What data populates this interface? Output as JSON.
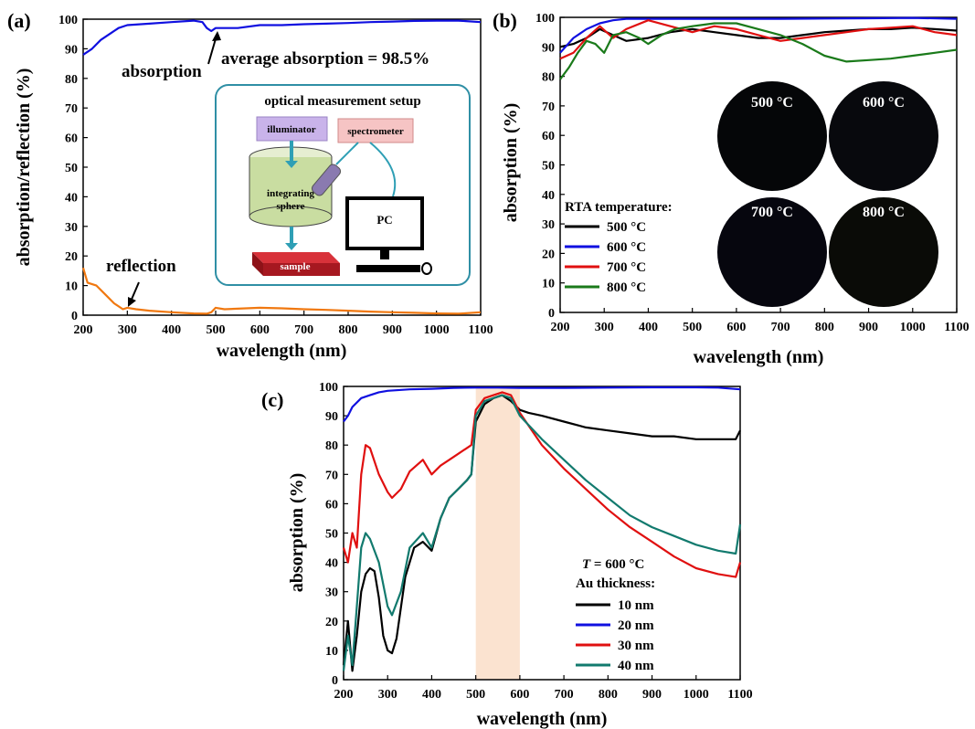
{
  "colors": {
    "black": "#000000",
    "blue": "#1010e0",
    "red": "#e01010",
    "green": "#1a7a1a",
    "orange": "#f07810",
    "teal": "#127a6e",
    "shade": "#fbe3d0"
  },
  "chart_data": [
    {
      "panel": "(a)",
      "type": "line",
      "xlabel": "wavelength (nm)",
      "ylabel": "absorption/reflection (%)",
      "xlim": [
        200,
        1100
      ],
      "ylim": [
        0,
        100
      ],
      "xticks": [
        200,
        300,
        400,
        500,
        600,
        700,
        800,
        900,
        1000,
        1100
      ],
      "yticks": [
        0,
        10,
        20,
        30,
        40,
        50,
        60,
        70,
        80,
        90,
        100
      ],
      "series": [
        {
          "name": "absorption",
          "color": "#1010e0",
          "x": [
            200,
            220,
            240,
            260,
            280,
            300,
            350,
            400,
            450,
            470,
            480,
            490,
            500,
            550,
            600,
            650,
            700,
            750,
            800,
            850,
            900,
            950,
            1000,
            1050,
            1100
          ],
          "y": [
            88,
            90,
            93,
            95,
            97,
            98,
            98.5,
            99,
            99.5,
            99,
            97,
            96,
            97,
            97,
            98,
            98,
            98.3,
            98.5,
            98.7,
            99,
            99.2,
            99.4,
            99.5,
            99.5,
            99
          ]
        },
        {
          "name": "reflection",
          "color": "#f07810",
          "x": [
            200,
            210,
            230,
            250,
            270,
            290,
            300,
            320,
            350,
            400,
            450,
            480,
            490,
            500,
            520,
            550,
            600,
            650,
            700,
            750,
            800,
            850,
            900,
            950,
            1000,
            1050,
            1100
          ],
          "y": [
            16,
            11,
            10,
            7,
            4,
            2,
            2.5,
            2,
            1.5,
            1,
            0.6,
            0.5,
            1,
            2.5,
            2,
            2.2,
            2.5,
            2.3,
            2,
            1.8,
            1.5,
            1.2,
            1,
            0.8,
            0.6,
            0.5,
            1
          ]
        }
      ],
      "annotations": [
        "absorption",
        "average absorption = 98.5%",
        "reflection"
      ],
      "inset": {
        "title": "optical measurement setup",
        "labels": {
          "illuminator": "illuminator",
          "spectrometer": "spectrometer",
          "integrating": "integrating",
          "sphere": "sphere",
          "pc": "PC",
          "sample": "sample"
        }
      }
    },
    {
      "panel": "(b)",
      "type": "line",
      "xlabel": "wavelength (nm)",
      "ylabel": "absorption (%)",
      "xlim": [
        200,
        1100
      ],
      "ylim": [
        0,
        100
      ],
      "xticks": [
        200,
        300,
        400,
        500,
        600,
        700,
        800,
        900,
        1000,
        1100
      ],
      "yticks": [
        0,
        10,
        20,
        30,
        40,
        50,
        60,
        70,
        80,
        90,
        100
      ],
      "legend_title": "RTA temperature:",
      "series": [
        {
          "name": "500 °C",
          "color": "#000000",
          "x": [
            200,
            230,
            260,
            290,
            320,
            350,
            400,
            450,
            500,
            550,
            600,
            650,
            700,
            750,
            800,
            850,
            900,
            950,
            1000,
            1050,
            1100
          ],
          "y": [
            90,
            91,
            93,
            96,
            94,
            92,
            93,
            95,
            96,
            95,
            94,
            93,
            93,
            94,
            95,
            95.5,
            96,
            96,
            96.5,
            96,
            95.5
          ]
        },
        {
          "name": "600 °C",
          "color": "#1010e0",
          "x": [
            200,
            230,
            260,
            290,
            320,
            350,
            400,
            450,
            500,
            600,
            700,
            800,
            900,
            1000,
            1100
          ],
          "y": [
            88,
            93,
            96,
            98,
            99,
            99.5,
            99.5,
            99.5,
            99.5,
            99.5,
            99.5,
            99.6,
            99.7,
            99.8,
            99.5
          ]
        },
        {
          "name": "700 °C",
          "color": "#e01010",
          "x": [
            200,
            230,
            260,
            290,
            320,
            350,
            400,
            450,
            500,
            550,
            600,
            650,
            700,
            750,
            800,
            850,
            900,
            950,
            1000,
            1050,
            1100
          ],
          "y": [
            86,
            88,
            93,
            97,
            93,
            96,
            99,
            97,
            95,
            97,
            96,
            94,
            92,
            93,
            94,
            95,
            96,
            96.5,
            97,
            95,
            94
          ]
        },
        {
          "name": "800 °C",
          "color": "#1a7a1a",
          "x": [
            200,
            220,
            240,
            260,
            280,
            300,
            320,
            350,
            380,
            400,
            430,
            460,
            500,
            550,
            600,
            650,
            700,
            750,
            800,
            850,
            900,
            950,
            1000,
            1050,
            1100
          ],
          "y": [
            79,
            83,
            88,
            92,
            91,
            88,
            94,
            95,
            93,
            91,
            94,
            96,
            97,
            98,
            98,
            96,
            94,
            91,
            87,
            85,
            85.5,
            86,
            87,
            88,
            89
          ]
        }
      ],
      "photo_labels": [
        "500 °C",
        "600 °C",
        "700 °C",
        "800 °C"
      ]
    },
    {
      "panel": "(c)",
      "type": "line",
      "xlabel": "wavelength (nm)",
      "ylabel": "absorption (%)",
      "xlim": [
        200,
        1100
      ],
      "ylim": [
        0,
        100
      ],
      "xticks": [
        200,
        300,
        400,
        500,
        600,
        700,
        800,
        900,
        1000,
        1100
      ],
      "yticks": [
        0,
        10,
        20,
        30,
        40,
        50,
        60,
        70,
        80,
        90,
        100
      ],
      "shaded_range": [
        500,
        600
      ],
      "legend_title_1": "T",
      "legend_title_2": " = 600 °C",
      "legend_title_3": "Au thickness:",
      "series": [
        {
          "name": "10 nm",
          "color": "#000000",
          "x": [
            200,
            210,
            220,
            230,
            240,
            250,
            260,
            270,
            280,
            290,
            300,
            310,
            320,
            340,
            360,
            380,
            400,
            420,
            440,
            460,
            480,
            490,
            500,
            520,
            540,
            560,
            580,
            600,
            620,
            650,
            700,
            750,
            800,
            850,
            900,
            950,
            1000,
            1050,
            1090,
            1100
          ],
          "y": [
            5,
            20,
            3,
            15,
            30,
            36,
            38,
            37,
            28,
            15,
            10,
            9,
            14,
            35,
            45,
            47,
            44,
            55,
            62,
            65,
            68,
            70,
            88,
            94,
            96,
            97,
            95,
            92,
            91,
            90,
            88,
            86,
            85,
            84,
            83,
            83,
            82,
            82,
            82,
            85
          ]
        },
        {
          "name": "20 nm",
          "color": "#1010e0",
          "x": [
            200,
            210,
            220,
            240,
            260,
            280,
            300,
            350,
            400,
            450,
            500,
            550,
            600,
            700,
            800,
            900,
            1000,
            1050,
            1100
          ],
          "y": [
            88,
            90,
            93,
            96,
            97,
            98,
            98.5,
            99,
            99.2,
            99.5,
            99.6,
            99.6,
            99.5,
            99.5,
            99.6,
            99.7,
            99.7,
            99.6,
            99
          ]
        },
        {
          "name": "30 nm",
          "color": "#e01010",
          "x": [
            200,
            210,
            220,
            230,
            240,
            250,
            260,
            280,
            300,
            310,
            330,
            350,
            380,
            400,
            420,
            440,
            460,
            480,
            490,
            500,
            520,
            540,
            560,
            580,
            600,
            650,
            700,
            750,
            800,
            850,
            900,
            950,
            1000,
            1050,
            1090,
            1100
          ],
          "y": [
            45,
            40,
            50,
            45,
            70,
            80,
            79,
            70,
            64,
            62,
            65,
            71,
            75,
            70,
            73,
            75,
            77,
            79,
            80,
            92,
            96,
            97,
            98,
            97,
            91,
            80,
            72,
            65,
            58,
            52,
            47,
            42,
            38,
            36,
            35,
            40
          ]
        },
        {
          "name": "40 nm",
          "color": "#127a6e",
          "x": [
            200,
            210,
            220,
            230,
            240,
            250,
            260,
            280,
            300,
            310,
            330,
            350,
            380,
            400,
            420,
            440,
            460,
            480,
            490,
            500,
            520,
            540,
            560,
            580,
            600,
            650,
            700,
            750,
            800,
            850,
            900,
            950,
            1000,
            1050,
            1090,
            1100
          ],
          "y": [
            3,
            15,
            5,
            25,
            45,
            50,
            48,
            40,
            25,
            22,
            30,
            45,
            50,
            45,
            55,
            62,
            65,
            68,
            70,
            90,
            95,
            96,
            97,
            96,
            90,
            82,
            75,
            68,
            62,
            56,
            52,
            49,
            46,
            44,
            43,
            53
          ]
        }
      ]
    }
  ]
}
